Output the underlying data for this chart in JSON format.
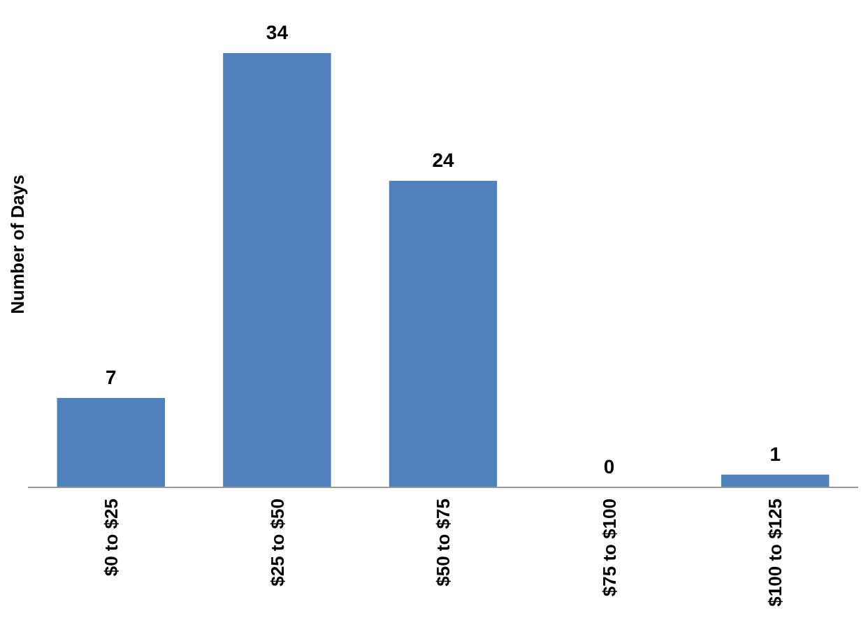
{
  "chart_data": {
    "type": "bar",
    "ylabel": "Number of Days",
    "categories": [
      "$0 to $25",
      "$25 to $50",
      "$50 to $75",
      "$75 to $100",
      "$100 to $125"
    ],
    "values": [
      7,
      34,
      24,
      0,
      1
    ],
    "color": "#4f81bd",
    "data_labels": true
  }
}
